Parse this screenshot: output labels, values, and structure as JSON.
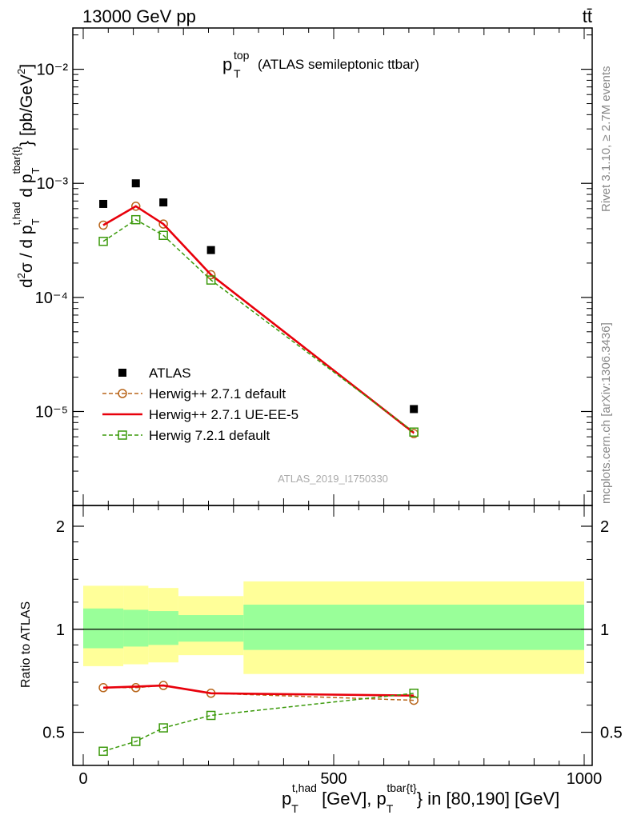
{
  "header": {
    "left": "13000 GeV pp",
    "right": "tt̄"
  },
  "side_text": {
    "rivet": "Rivet 3.1.10, ≥ 2.7M events",
    "mcplots": "mcplots.cern.ch [arXiv:1306.3436]"
  },
  "main_plot": {
    "title_main": "p",
    "title_sup": "top",
    "title_sub": "T",
    "title_rest": "(ATLAS semileptonic ttbar)",
    "ylabel": "d²σ / d p_T^{t,had} d p_T^{tbar{t}} [pb/GeV²]",
    "watermark": "ATLAS_2019_I1750330",
    "ytick_labels": [
      "10⁻⁵",
      "10⁻⁴",
      "10⁻³",
      "10⁻²"
    ]
  },
  "ratio_plot": {
    "ylabel": "Ratio to ATLAS",
    "ytick_labels": [
      "0.5",
      "1",
      "2"
    ],
    "xtick_labels": [
      "0",
      "500",
      "1000"
    ],
    "xlabel": "p_T^{t,had} [GeV], p_T^{tbar{t}} in [80,190] [GeV]"
  },
  "colors": {
    "data": "#000000",
    "herwigpp_default": "#b8651a",
    "herwigpp_ueee5": "#e8000b",
    "herwig7": "#3c9a0c",
    "band_inner": "#99ff99",
    "band_outer": "#ffff99"
  },
  "chart_data": [
    {
      "type": "scatter",
      "title": "p_T^top (ATLAS semileptonic ttbar)",
      "xlabel": "",
      "ylabel": "d²σ / d p_T^{t,had} d p_T^{tbar{t}} [pb/GeV²]",
      "xlim": [
        -40,
        1000
      ],
      "ylim": [
        1.5e-06,
        0.023
      ],
      "yscale": "log",
      "legend_position": "lower-left",
      "x": [
        40,
        105,
        160,
        255,
        660
      ],
      "series": [
        {
          "name": "ATLAS",
          "style": "markers",
          "marker": "filled-square",
          "values": [
            0.00066,
            0.001,
            0.00068,
            0.00026,
            1.05e-05
          ]
        },
        {
          "name": "Herwig++ 2.7.1 default",
          "style": "dashed",
          "marker": "open-circle",
          "values": [
            0.00043,
            0.00063,
            0.00044,
            0.000158,
            6.4e-06
          ]
        },
        {
          "name": "Herwig++ 2.7.1 UE-EE-5",
          "style": "solid",
          "marker": "none",
          "values": [
            0.00043,
            0.00063,
            0.00044,
            0.000158,
            6.5e-06
          ]
        },
        {
          "name": "Herwig 7.2.1 default",
          "style": "dashed",
          "marker": "open-square",
          "values": [
            0.00031,
            0.00048,
            0.00035,
            0.000142,
            6.6e-06
          ]
        }
      ]
    },
    {
      "type": "line",
      "title": "",
      "xlabel": "p_T^{t,had} [GeV], p_T^{tbar{t}} in [80,190] [GeV]",
      "ylabel": "Ratio to ATLAS",
      "xlim": [
        -40,
        1000
      ],
      "ylim": [
        0.4,
        2.3
      ],
      "yscale": "log",
      "x": [
        40,
        105,
        160,
        255,
        660
      ],
      "bins": [
        [
          0,
          80
        ],
        [
          80,
          130
        ],
        [
          130,
          190
        ],
        [
          190,
          320
        ],
        [
          320,
          1000
        ]
      ],
      "band_inner": [
        [
          0.88,
          1.15
        ],
        [
          0.89,
          1.14
        ],
        [
          0.9,
          1.13
        ],
        [
          0.92,
          1.1
        ],
        [
          0.87,
          1.18
        ]
      ],
      "band_outer": [
        [
          0.78,
          1.34
        ],
        [
          0.79,
          1.34
        ],
        [
          0.8,
          1.32
        ],
        [
          0.84,
          1.25
        ],
        [
          0.74,
          1.38
        ]
      ],
      "series": [
        {
          "name": "Herwig++ 2.7.1 default",
          "style": "dashed",
          "marker": "open-circle",
          "values": [
            0.675,
            0.675,
            0.685,
            0.65,
            0.62
          ]
        },
        {
          "name": "Herwig++ 2.7.1 UE-EE-5",
          "style": "solid",
          "marker": "none",
          "values": [
            0.675,
            0.68,
            0.685,
            0.65,
            0.64
          ]
        },
        {
          "name": "Herwig 7.2.1 default",
          "style": "dashed",
          "marker": "open-square",
          "values": [
            0.44,
            0.47,
            0.515,
            0.56,
            0.65
          ]
        }
      ]
    }
  ]
}
